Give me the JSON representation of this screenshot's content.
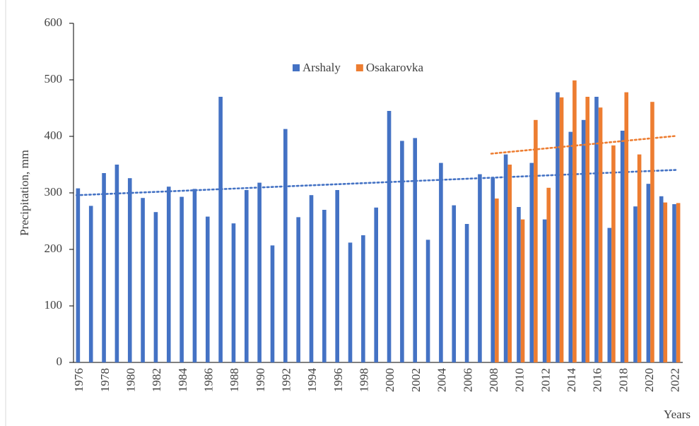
{
  "chart_data": {
    "type": "bar",
    "y_label": "Precipitation, mm",
    "x_label": "Years",
    "categories": [
      "1976",
      null,
      "1978",
      null,
      "1980",
      null,
      "1982",
      null,
      "1984",
      null,
      "1986",
      null,
      "1988",
      null,
      "1990",
      null,
      "1992",
      null,
      "1994",
      null,
      "1996",
      null,
      "1998",
      null,
      "2000",
      null,
      "2002",
      null,
      "2004",
      null,
      "2006",
      null,
      "2008",
      null,
      "2010",
      null,
      "2012",
      null,
      "2014",
      null,
      "2016",
      null,
      "2018",
      null,
      "2020",
      null,
      "2022"
    ],
    "series": [
      {
        "name": "Arshaly",
        "color": "#4472c4",
        "trendline": "linear",
        "values": [
          308,
          277,
          335,
          350,
          326,
          291,
          266,
          311,
          293,
          307,
          258,
          470,
          246,
          305,
          318,
          207,
          413,
          257,
          296,
          270,
          305,
          212,
          225,
          274,
          445,
          392,
          397,
          217,
          353,
          278,
          245,
          333,
          327,
          368,
          275,
          353,
          253,
          478,
          408,
          429,
          470,
          238,
          410,
          276,
          316,
          294,
          280
        ]
      },
      {
        "name": "Osakarovka",
        "color": "#ed7d31",
        "trendline": "linear",
        "values": [
          null,
          null,
          null,
          null,
          null,
          null,
          null,
          null,
          null,
          null,
          null,
          null,
          null,
          null,
          null,
          null,
          null,
          null,
          null,
          null,
          null,
          null,
          null,
          null,
          null,
          null,
          null,
          null,
          null,
          null,
          null,
          null,
          290,
          350,
          253,
          429,
          309,
          469,
          499,
          470,
          451,
          384,
          478,
          368,
          461,
          283,
          282
        ]
      }
    ],
    "ylim": [
      0,
      600
    ],
    "yticks": [
      0,
      100,
      200,
      300,
      400,
      500,
      600
    ],
    "grid": false,
    "legend": "top"
  }
}
